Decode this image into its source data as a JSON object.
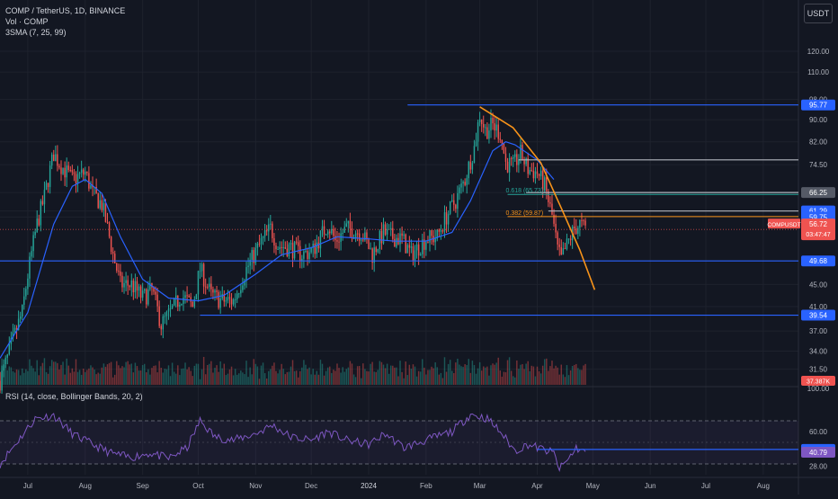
{
  "legend": {
    "symbol": "COMP / TetherUS, 1D, BINANCE",
    "vol": "Vol · COMP",
    "sma": "3SMA (7, 25, 99)"
  },
  "rsi_legend": "RSI (14, close, Bollinger Bands, 20, 2)",
  "currency_button": "USDT",
  "colors": {
    "background": "#131722",
    "bull": "#26a69a",
    "bear": "#ef5350",
    "sma": "#2962ff",
    "support_line": "#2962ff",
    "curve": "#f7931a",
    "fib_0618": "#26a69a",
    "fib_0382": "#f7931a",
    "resistance_gray": "#b2b5be",
    "rsi_line": "#7e57c2"
  },
  "chart_data": [
    {
      "type": "candlestick",
      "title": "COMP / TetherUS, 1D, BINANCE",
      "x_axis": {
        "ticks": [
          "Jul",
          "Aug",
          "Sep",
          "Oct",
          "Nov",
          "Dec",
          "2024",
          "Feb",
          "Mar",
          "Apr",
          "May",
          "Jun",
          "Jul",
          "Aug"
        ],
        "tick_dates": [
          "2023-07-01",
          "2023-08-01",
          "2023-09-01",
          "2023-10-01",
          "2023-11-01",
          "2023-12-01",
          "2024-01-01",
          "2024-02-01",
          "2024-03-01",
          "2024-04-01",
          "2024-05-01",
          "2024-06-01",
          "2024-07-01",
          "2024-08-01"
        ],
        "range": [
          "2023-06-16",
          "2024-08-20"
        ]
      },
      "y_axis": {
        "scale": "log",
        "ticks": [
          "120.00",
          "110.00",
          "98.00",
          "90.00",
          "82.00",
          "74.50",
          "66.25",
          "61.29",
          "59.75",
          "49.68",
          "45.00",
          "41.00",
          "39.54",
          "37.00",
          "34.00",
          "31.50"
        ],
        "range": [
          29.5,
          128
        ]
      },
      "price_anchors": [
        [
          "2023-06-16",
          30
        ],
        [
          "2023-06-20",
          33
        ],
        [
          "2023-06-28",
          40
        ],
        [
          "2023-07-06",
          58
        ],
        [
          "2023-07-10",
          65
        ],
        [
          "2023-07-15",
          78
        ],
        [
          "2023-07-18",
          75
        ],
        [
          "2023-07-22",
          72
        ],
        [
          "2023-07-25",
          70
        ],
        [
          "2023-08-01",
          72
        ],
        [
          "2023-08-05",
          66
        ],
        [
          "2023-08-10",
          63
        ],
        [
          "2023-08-16",
          51
        ],
        [
          "2023-08-20",
          45
        ],
        [
          "2023-08-26",
          45
        ],
        [
          "2023-09-01",
          42.5
        ],
        [
          "2023-09-06",
          44
        ],
        [
          "2023-09-11",
          38
        ],
        [
          "2023-09-16",
          40
        ],
        [
          "2023-09-22",
          43
        ],
        [
          "2023-09-28",
          41
        ],
        [
          "2023-10-02",
          48
        ],
        [
          "2023-10-08",
          43
        ],
        [
          "2023-10-14",
          42
        ],
        [
          "2023-10-20",
          42
        ],
        [
          "2023-10-27",
          48
        ],
        [
          "2023-11-03",
          53
        ],
        [
          "2023-11-09",
          57
        ],
        [
          "2023-11-13",
          53
        ],
        [
          "2023-11-20",
          52.5
        ],
        [
          "2023-11-26",
          51
        ],
        [
          "2023-12-02",
          52
        ],
        [
          "2023-12-10",
          58
        ],
        [
          "2023-12-14",
          54
        ],
        [
          "2023-12-20",
          57
        ],
        [
          "2023-12-28",
          56
        ],
        [
          "2024-01-03",
          51
        ],
        [
          "2024-01-09",
          56
        ],
        [
          "2024-01-13",
          55
        ],
        [
          "2024-01-19",
          54.5
        ],
        [
          "2024-01-24",
          51
        ],
        [
          "2024-02-01",
          54.5
        ],
        [
          "2024-02-07",
          55
        ],
        [
          "2024-02-12",
          60
        ],
        [
          "2024-02-17",
          64
        ],
        [
          "2024-02-22",
          70
        ],
        [
          "2024-02-27",
          80
        ],
        [
          "2024-03-01",
          92
        ],
        [
          "2024-03-04",
          86
        ],
        [
          "2024-03-08",
          88
        ],
        [
          "2024-03-12",
          85
        ],
        [
          "2024-03-15",
          75
        ],
        [
          "2024-03-19",
          74
        ],
        [
          "2024-03-23",
          78
        ],
        [
          "2024-03-27",
          73
        ],
        [
          "2024-04-01",
          72
        ],
        [
          "2024-04-05",
          68
        ],
        [
          "2024-04-09",
          60
        ],
        [
          "2024-04-12",
          52
        ],
        [
          "2024-04-14",
          50
        ],
        [
          "2024-04-18",
          54
        ],
        [
          "2024-04-21",
          57
        ],
        [
          "2024-04-24",
          58
        ],
        [
          "2024-04-27",
          56.72
        ]
      ],
      "sma": [
        [
          "2023-06-16",
          33
        ],
        [
          "2023-07-01",
          40
        ],
        [
          "2023-07-15",
          58
        ],
        [
          "2023-07-25",
          68
        ],
        [
          "2023-08-01",
          70
        ],
        [
          "2023-08-10",
          66
        ],
        [
          "2023-08-20",
          55
        ],
        [
          "2023-09-01",
          46
        ],
        [
          "2023-09-15",
          42.5
        ],
        [
          "2023-10-01",
          42
        ],
        [
          "2023-10-15",
          43
        ],
        [
          "2023-11-01",
          47
        ],
        [
          "2023-11-15",
          51
        ],
        [
          "2023-12-01",
          52.5
        ],
        [
          "2023-12-15",
          55
        ],
        [
          "2024-01-01",
          54.5
        ],
        [
          "2024-01-15",
          54
        ],
        [
          "2024-02-01",
          54
        ],
        [
          "2024-02-15",
          56
        ],
        [
          "2024-02-25",
          64
        ],
        [
          "2024-03-08",
          79
        ],
        [
          "2024-03-15",
          82
        ],
        [
          "2024-03-20",
          81
        ],
        [
          "2024-04-01",
          76
        ],
        [
          "2024-04-10",
          70
        ]
      ],
      "horizontal_lines": [
        {
          "label": "95.77",
          "value": 95.77,
          "from": "2024-01-22",
          "color": "#2962ff"
        },
        {
          "label": "49.68",
          "value": 49.68,
          "from": "2023-06-16",
          "color": "#2962ff"
        },
        {
          "label": "39.54",
          "value": 39.54,
          "from": "2023-10-02",
          "color": "#2962ff"
        },
        {
          "label": "66.25",
          "value": 66.25,
          "from": "2024-03-26",
          "color": "#b2b5be"
        },
        {
          "label": "",
          "value": 76.0,
          "from": "2024-03-22",
          "color": "#b2b5be"
        },
        {
          "label": "61.29",
          "value": 61.29,
          "from": "2024-04-07",
          "color": "#b2b5be"
        }
      ],
      "fib_levels": [
        {
          "label": "0.618 (65.73)",
          "value": 65.73,
          "from": "2024-03-16"
        },
        {
          "label": "0.382 (59.87)",
          "value": 59.87,
          "from": "2024-03-16"
        }
      ],
      "fib_axis_labels": [
        "59.75"
      ],
      "curve": [
        [
          "2024-03-01",
          95
        ],
        [
          "2024-03-19",
          87
        ],
        [
          "2024-04-03",
          75
        ],
        [
          "2024-04-14",
          62
        ],
        [
          "2024-04-24",
          52
        ],
        [
          "2024-05-02",
          44
        ]
      ],
      "last_price": {
        "symbol": "COMPUSDT",
        "value": "56.72",
        "countdown": "03:47:47"
      },
      "volume": {
        "label": "37.387K"
      }
    },
    {
      "type": "line",
      "title": "RSI (14, close, Bollinger Bands, 20, 2)",
      "y_axis": {
        "ticks": [
          "100.00",
          "60.00",
          "43.43",
          "40.79",
          "28.00"
        ],
        "range": [
          20,
          100
        ]
      },
      "bands": [
        70,
        30
      ],
      "midline": 50,
      "levels": [
        {
          "label": "43.43",
          "value": 43.43,
          "from": "2024-04-01"
        }
      ],
      "current": "40.79",
      "rsi_anchors": [
        [
          "2023-06-16",
          30
        ],
        [
          "2023-06-25",
          50
        ],
        [
          "2023-07-05",
          72
        ],
        [
          "2023-07-15",
          75
        ],
        [
          "2023-07-25",
          58
        ],
        [
          "2023-08-05",
          48
        ],
        [
          "2023-08-15",
          40
        ],
        [
          "2023-08-25",
          36
        ],
        [
          "2023-09-05",
          40
        ],
        [
          "2023-09-15",
          35
        ],
        [
          "2023-09-25",
          45
        ],
        [
          "2023-10-02",
          70
        ],
        [
          "2023-10-10",
          55
        ],
        [
          "2023-10-20",
          52
        ],
        [
          "2023-11-01",
          58
        ],
        [
          "2023-11-10",
          66
        ],
        [
          "2023-11-20",
          55
        ],
        [
          "2023-12-01",
          52
        ],
        [
          "2023-12-10",
          60
        ],
        [
          "2023-12-20",
          52
        ],
        [
          "2024-01-01",
          48
        ],
        [
          "2024-01-10",
          58
        ],
        [
          "2024-01-20",
          45
        ],
        [
          "2024-02-01",
          52
        ],
        [
          "2024-02-15",
          60
        ],
        [
          "2024-02-25",
          76
        ],
        [
          "2024-03-05",
          72
        ],
        [
          "2024-03-12",
          60
        ],
        [
          "2024-03-20",
          42
        ],
        [
          "2024-03-27",
          48
        ],
        [
          "2024-04-03",
          44
        ],
        [
          "2024-04-10",
          40
        ],
        [
          "2024-04-13",
          25
        ],
        [
          "2024-04-18",
          35
        ],
        [
          "2024-04-22",
          45
        ],
        [
          "2024-04-27",
          40.79
        ]
      ]
    }
  ]
}
